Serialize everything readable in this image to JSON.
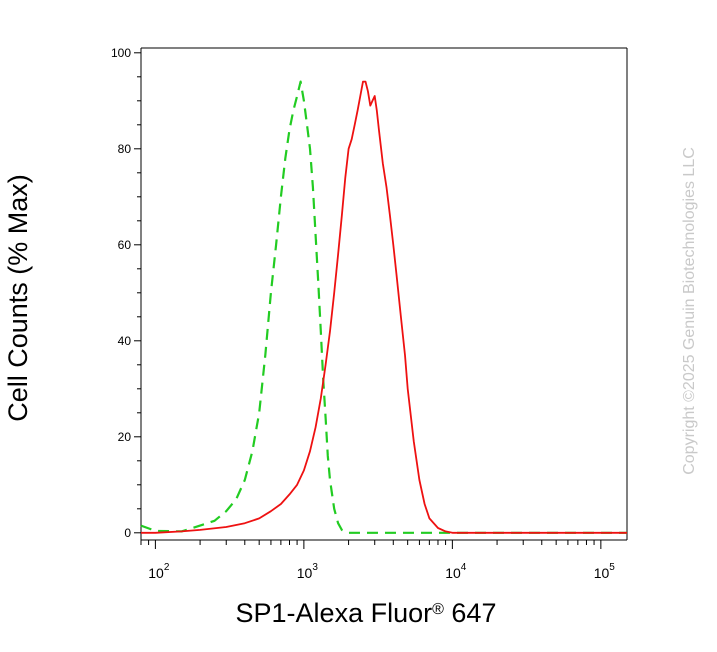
{
  "chart_data": {
    "type": "line",
    "xlabel_main": "SP1-Alexa Fluor",
    "xlabel_reg": "®",
    "xlabel_tail": " 647",
    "ylabel": "Cell Counts (% Max)",
    "x_scale": "log",
    "xlim": [
      80,
      150000
    ],
    "ylim": [
      -1.5,
      101
    ],
    "x_ticks": [
      {
        "value": 100,
        "base": "10",
        "exp": "2"
      },
      {
        "value": 1000,
        "base": "10",
        "exp": "3"
      },
      {
        "value": 10000,
        "base": "10",
        "exp": "4"
      },
      {
        "value": 100000,
        "base": "10",
        "exp": "5"
      }
    ],
    "y_ticks": [
      0,
      20,
      40,
      60,
      80,
      100
    ],
    "y_tick_labels": [
      "0",
      "20",
      "40",
      "60",
      "80",
      "100"
    ],
    "series": [
      {
        "color": "#22cc22",
        "dash": true,
        "x": [
          80,
          100,
          150,
          200,
          250,
          300,
          350,
          400,
          450,
          500,
          550,
          600,
          650,
          700,
          750,
          800,
          850,
          900,
          950,
          1000,
          1050,
          1100,
          1150,
          1200,
          1250,
          1300,
          1350,
          1400,
          1450,
          1500,
          1600,
          1700,
          1800,
          1900,
          2000,
          2200,
          2500,
          3000,
          5000,
          20000,
          150000
        ],
        "y": [
          1.5,
          0.4,
          0.3,
          1.5,
          2.5,
          4.5,
          7,
          11,
          17,
          25,
          37,
          50,
          60,
          70,
          78,
          84,
          88,
          91,
          94,
          90,
          85,
          80,
          72,
          62,
          52,
          42,
          32,
          24,
          16,
          11,
          5,
          2,
          0.6,
          0.2,
          0,
          0,
          0,
          0,
          0,
          0,
          0
        ]
      },
      {
        "color": "#ee1111",
        "dash": false,
        "x": [
          80,
          100,
          150,
          200,
          300,
          400,
          500,
          600,
          700,
          800,
          900,
          1000,
          1100,
          1200,
          1300,
          1400,
          1500,
          1600,
          1700,
          1800,
          1900,
          2000,
          2100,
          2200,
          2300,
          2400,
          2500,
          2600,
          2700,
          2800,
          2900,
          3000,
          3100,
          3200,
          3400,
          3600,
          3800,
          4000,
          4200,
          4500,
          4800,
          5000,
          5500,
          6000,
          6500,
          7000,
          8000,
          9000,
          10000,
          20000,
          150000
        ],
        "y": [
          0,
          0,
          0.3,
          0.6,
          1.2,
          2,
          3,
          4.5,
          6,
          8,
          10,
          13,
          17,
          22,
          28,
          35,
          42,
          50,
          58,
          66,
          74,
          80,
          82,
          85,
          88,
          91,
          94,
          94,
          92,
          89,
          90,
          91,
          88,
          84,
          77,
          72,
          66,
          60,
          54,
          45,
          37,
          30,
          19,
          11,
          6,
          3,
          1,
          0.3,
          0,
          0,
          0
        ]
      }
    ]
  },
  "watermark": "Copyright ©2025 Genuin Biotechnologies LLC"
}
